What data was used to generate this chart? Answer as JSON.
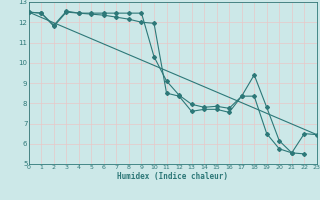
{
  "xlabel": "Humidex (Indice chaleur)",
  "xlim": [
    0,
    23
  ],
  "ylim": [
    5,
    13
  ],
  "xticks": [
    0,
    1,
    2,
    3,
    4,
    5,
    6,
    7,
    8,
    9,
    10,
    11,
    12,
    13,
    14,
    15,
    16,
    17,
    18,
    19,
    20,
    21,
    22,
    23
  ],
  "yticks": [
    5,
    6,
    7,
    8,
    9,
    10,
    11,
    12,
    13
  ],
  "bg_color": "#cce8e8",
  "grid_color": "#e8c8c8",
  "line_color": "#2d7878",
  "line1_x": [
    0,
    1,
    2,
    3,
    4,
    5,
    6,
    7,
    8,
    9,
    10,
    11,
    12,
    13,
    14,
    15,
    16,
    17,
    18,
    19,
    20,
    21,
    22
  ],
  "line1_y": [
    12.5,
    12.45,
    11.8,
    12.5,
    12.45,
    12.4,
    12.35,
    12.25,
    12.15,
    12.0,
    11.95,
    8.5,
    8.35,
    7.6,
    7.7,
    7.7,
    7.55,
    8.35,
    9.4,
    7.8,
    6.15,
    5.55,
    5.5
  ],
  "line2_x": [
    0,
    1,
    2,
    3,
    4,
    5,
    6,
    7,
    8,
    9,
    10,
    11,
    12,
    13,
    14,
    15,
    16,
    17,
    18,
    19,
    20,
    21,
    22,
    23
  ],
  "line2_y": [
    12.5,
    12.45,
    11.85,
    12.55,
    12.45,
    12.45,
    12.45,
    12.45,
    12.45,
    12.45,
    10.3,
    9.1,
    8.4,
    7.95,
    7.8,
    7.85,
    7.75,
    8.35,
    8.35,
    6.5,
    5.75,
    5.55,
    6.5,
    6.45
  ],
  "line3_x": [
    0,
    23
  ],
  "line3_y": [
    12.5,
    6.45
  ]
}
